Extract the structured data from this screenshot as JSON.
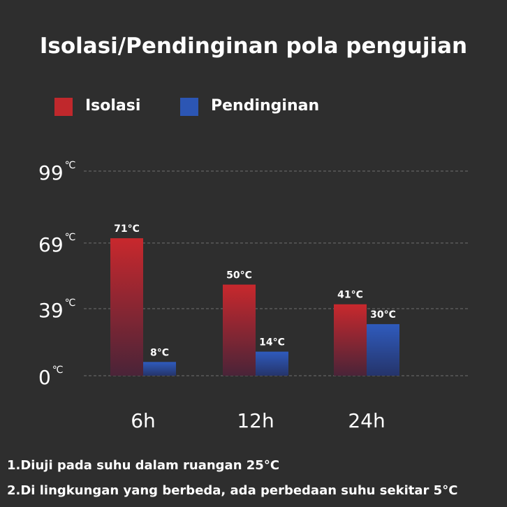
{
  "chart_data": {
    "type": "bar",
    "title": "Isolasi/Pendinginan pola pengujian",
    "categories": [
      "6h",
      "12h",
      "24h"
    ],
    "series": [
      {
        "name": "Isolasi",
        "values": [
          71,
          50,
          41
        ],
        "labels": [
          "71°C",
          "50°C",
          "41°C"
        ],
        "color": "#c0282c"
      },
      {
        "name": "Pendinginan",
        "values": [
          8,
          14,
          30
        ],
        "labels": [
          "8°C",
          "14°C",
          "30°C"
        ],
        "color": "#2c56b4"
      }
    ],
    "y_ticks": [
      {
        "value": 0,
        "num": "0",
        "unit": "℃"
      },
      {
        "value": 39,
        "num": "39",
        "unit": "℃"
      },
      {
        "value": 69,
        "num": "69",
        "unit": "℃"
      },
      {
        "value": 99,
        "num": "99",
        "unit": "℃"
      }
    ],
    "ylim": [
      0,
      99
    ],
    "grid": true,
    "legend_position": "top-left"
  },
  "notes": [
    "1.Diuji pada suhu dalam ruangan 25°C",
    "2.Di lingkungan yang berbeda, ada perbedaan suhu sekitar 5°C"
  ]
}
